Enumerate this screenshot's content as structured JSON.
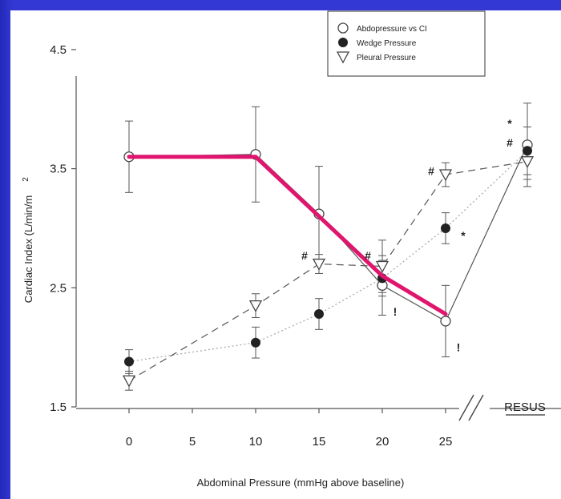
{
  "chart_data": {
    "type": "line",
    "xlabel": "Abdominal Pressure (mmHg above baseline)",
    "ylabel": "Cardiac Index (L/min/m",
    "ylabel_superscript": "2",
    "x_ticks": [
      "0",
      "5",
      "10",
      "15",
      "20",
      "25"
    ],
    "y_ticks": [
      "1.5",
      "2.5",
      "3.5",
      "4.5"
    ],
    "xlim": [
      0,
      25
    ],
    "ylim": [
      1.5,
      4.5
    ],
    "resus_label": "RESUS",
    "legend": [
      "Abdopressure vs CI",
      "Wedge Pressure",
      "Pleural Pressure"
    ],
    "series": [
      {
        "name": "Abdopressure vs CI",
        "marker": "open-circle",
        "line": "solid",
        "x": [
          "0",
          "10",
          "15",
          "20",
          "25",
          "RESUS"
        ],
        "y": [
          3.6,
          3.62,
          3.12,
          2.52,
          2.22,
          3.7
        ],
        "err": [
          0.3,
          0.4,
          0.4,
          0.25,
          0.3,
          0.35
        ]
      },
      {
        "name": "Wedge Pressure",
        "marker": "filled-circle",
        "line": "dotted",
        "x": [
          "0",
          "10",
          "15",
          "20",
          "25",
          "RESUS"
        ],
        "y": [
          1.88,
          2.04,
          2.28,
          2.58,
          3.0,
          3.65
        ],
        "err": [
          0.1,
          0.13,
          0.13,
          0.15,
          0.13,
          0.2
        ]
      },
      {
        "name": "Pleural Pressure",
        "marker": "open-triangle",
        "line": "dashed",
        "x": [
          "0",
          "10",
          "15",
          "20",
          "25",
          "RESUS"
        ],
        "y": [
          1.72,
          2.35,
          2.7,
          2.68,
          3.45,
          3.56
        ],
        "err": [
          0.08,
          0.1,
          0.08,
          0.22,
          0.1,
          0.15
        ]
      }
    ],
    "highlight": {
      "color": "#e0156e",
      "x": [
        0,
        10,
        20,
        25
      ],
      "y": [
        3.6,
        3.6,
        2.6,
        2.28
      ]
    },
    "annotations": [
      {
        "text": "#",
        "x": 15,
        "y": 2.77
      },
      {
        "text": "#",
        "x": 20,
        "y": 2.77
      },
      {
        "text": "#",
        "x": 25,
        "y": 3.48
      },
      {
        "text": "#",
        "x": "RESUS",
        "y": 3.72
      },
      {
        "text": "*",
        "x": "RESUS",
        "y": 3.88
      },
      {
        "text": "*",
        "x": 25,
        "y": 2.94
      },
      {
        "text": "!",
        "x": 20,
        "y": 2.3
      },
      {
        "text": "!",
        "x": 25,
        "y": 2.0
      }
    ]
  }
}
